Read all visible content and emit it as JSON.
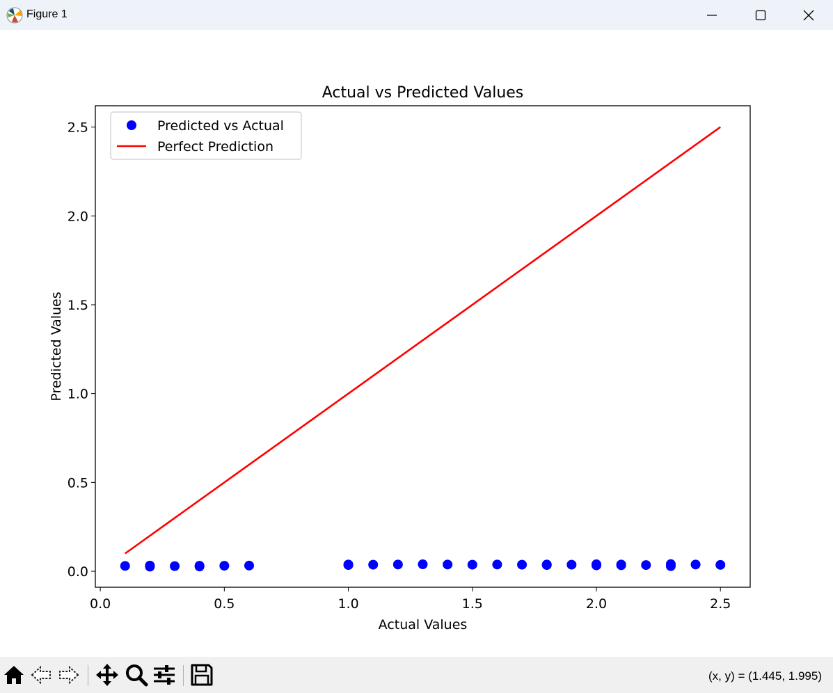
{
  "window": {
    "title": "Figure 1",
    "app_icon": "matplotlib-logo-icon",
    "controls": [
      "minimize-icon",
      "maximize-icon",
      "close-icon"
    ]
  },
  "toolbar": {
    "buttons": [
      {
        "name": "home-button",
        "icon": "home-icon"
      },
      {
        "name": "back-button",
        "icon": "back-arrow-icon"
      },
      {
        "name": "forward-button",
        "icon": "forward-arrow-icon"
      },
      {
        "name": "pan-button",
        "icon": "move-icon"
      },
      {
        "name": "zoom-button",
        "icon": "magnifier-icon"
      },
      {
        "name": "configure-subplots-button",
        "icon": "sliders-icon"
      },
      {
        "name": "save-button",
        "icon": "floppy-disk-icon"
      }
    ],
    "coords_text": "(x, y) = (1.445, 1.995)"
  },
  "chart_data": {
    "type": "scatter",
    "title": "Actual vs Predicted Values",
    "xlabel": "Actual Values",
    "ylabel": "Predicted Values",
    "xlim": [
      -0.02,
      2.62
    ],
    "ylim": [
      -0.09,
      2.62
    ],
    "xticks": [
      0.0,
      0.5,
      1.0,
      1.5,
      2.0,
      2.5
    ],
    "xtick_labels": [
      "0.0",
      "0.5",
      "1.0",
      "1.5",
      "2.0",
      "2.5"
    ],
    "yticks": [
      0.0,
      0.5,
      1.0,
      1.5,
      2.0,
      2.5
    ],
    "ytick_labels": [
      "0.0",
      "0.5",
      "1.0",
      "1.5",
      "2.0",
      "2.5"
    ],
    "grid": false,
    "legend_position": "upper-left",
    "series": [
      {
        "name": "Predicted vs Actual",
        "kind": "scatter",
        "color": "#0000ff",
        "points": [
          [
            0.1,
            0.03
          ],
          [
            0.2,
            0.032
          ],
          [
            0.2,
            0.026
          ],
          [
            0.3,
            0.029
          ],
          [
            0.4,
            0.031
          ],
          [
            0.4,
            0.027
          ],
          [
            0.5,
            0.031
          ],
          [
            0.6,
            0.032
          ],
          [
            1.0,
            0.038
          ],
          [
            1.0,
            0.035
          ],
          [
            1.1,
            0.037
          ],
          [
            1.2,
            0.038
          ],
          [
            1.3,
            0.039
          ],
          [
            1.4,
            0.038
          ],
          [
            1.5,
            0.037
          ],
          [
            1.6,
            0.038
          ],
          [
            1.7,
            0.037
          ],
          [
            1.8,
            0.038
          ],
          [
            1.8,
            0.035
          ],
          [
            1.9,
            0.037
          ],
          [
            2.0,
            0.039
          ],
          [
            2.0,
            0.033
          ],
          [
            2.1,
            0.038
          ],
          [
            2.1,
            0.034
          ],
          [
            2.2,
            0.035
          ],
          [
            2.3,
            0.04
          ],
          [
            2.3,
            0.029
          ],
          [
            2.4,
            0.038
          ],
          [
            2.5,
            0.036
          ]
        ]
      },
      {
        "name": "Perfect Prediction",
        "kind": "line",
        "color": "#ff0000",
        "points": [
          [
            0.1,
            0.1
          ],
          [
            2.5,
            2.5
          ]
        ]
      }
    ]
  }
}
